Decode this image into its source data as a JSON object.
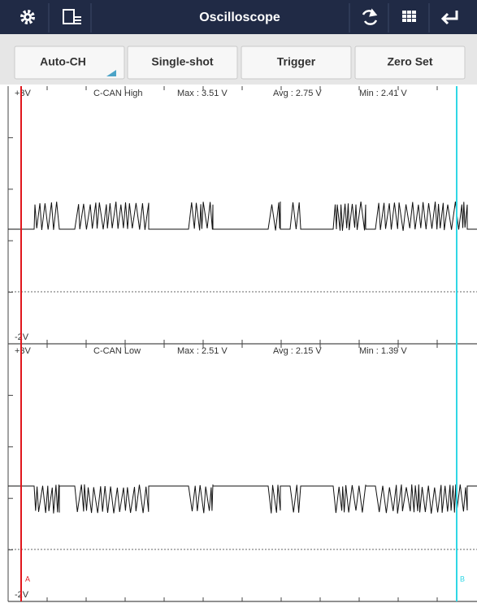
{
  "header": {
    "title": "Oscilloscope"
  },
  "toolbar": {
    "buttons": [
      "Auto-CH",
      "Single-shot",
      "Trigger",
      "Zero Set"
    ]
  },
  "channels": [
    {
      "top_label": "+3V",
      "bottom_label": "-2V",
      "name": "C-CAN High",
      "max": "Max : 3.51 V",
      "avg": "Avg : 2.75 V",
      "min": "Min : 2.41 V"
    },
    {
      "top_label": "+3V",
      "bottom_label": "-2V",
      "name": "C-CAN Low",
      "max": "Max : 2.51 V",
      "avg": "Avg : 2.15 V",
      "min": "Min : 1.39 V"
    }
  ],
  "cursors": {
    "a": "A",
    "b": "B"
  }
}
